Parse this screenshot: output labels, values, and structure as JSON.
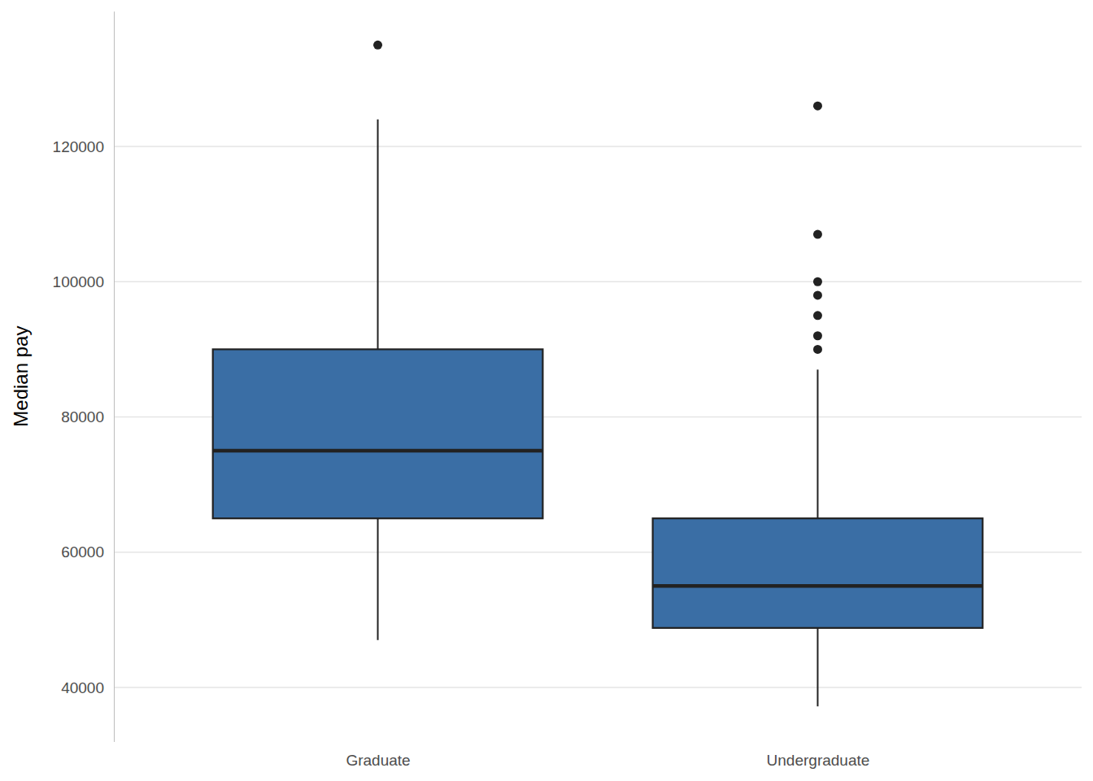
{
  "chart_data": {
    "type": "box",
    "y_label": "Median pay",
    "categories": [
      "Graduate",
      "Undergraduate"
    ],
    "boxes": [
      {
        "low": 47000,
        "q1": 65000,
        "median": 75000,
        "q3": 90000,
        "high": 124000,
        "outliers": [
          135000
        ]
      },
      {
        "low": 37200,
        "q1": 48800,
        "median": 55000,
        "q3": 65000,
        "high": 87000,
        "outliers": [
          126000,
          107000,
          100000,
          98000,
          95000,
          92000,
          90000
        ]
      }
    ],
    "color": "#3a6ea5",
    "ylim": [
      32000,
      140000
    ],
    "yticks": [
      40000,
      60000,
      80000,
      100000,
      120000
    ],
    "grid": true
  }
}
